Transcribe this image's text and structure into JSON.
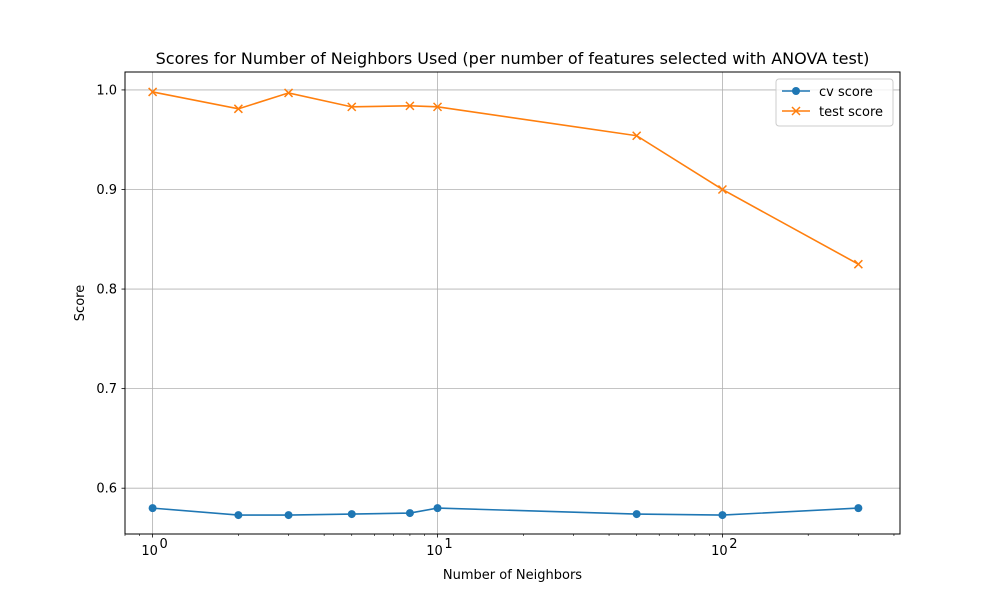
{
  "chart_data": {
    "type": "line",
    "title": "Scores for Number of Neighbors Used (per number of features selected with ANOVA test)",
    "xlabel": "Number of Neighbors",
    "ylabel": "Score",
    "x_scale": "log",
    "xlim": [
      0.8,
      420
    ],
    "ylim": [
      0.554,
      1.018
    ],
    "x": [
      1,
      2,
      3,
      5,
      8,
      10,
      50,
      100,
      300
    ],
    "x_ticks": [
      {
        "value": 1,
        "base": "10",
        "exp": "0"
      },
      {
        "value": 10,
        "base": "10",
        "exp": "1"
      },
      {
        "value": 100,
        "base": "10",
        "exp": "2"
      }
    ],
    "y_ticks": [
      {
        "value": 0.6,
        "label": "0.6"
      },
      {
        "value": 0.7,
        "label": "0.7"
      },
      {
        "value": 0.8,
        "label": "0.8"
      },
      {
        "value": 0.9,
        "label": "0.9"
      },
      {
        "value": 1.0,
        "label": "1.0"
      }
    ],
    "grid": true,
    "legend_position": "top-right",
    "series": [
      {
        "name": "cv score",
        "color": "#1f77b4",
        "marker": "circle",
        "values": [
          0.58,
          0.573,
          0.573,
          0.574,
          0.575,
          0.58,
          0.574,
          0.573,
          0.58
        ]
      },
      {
        "name": "test score",
        "color": "#ff7f0e",
        "marker": "x",
        "values": [
          0.998,
          0.981,
          0.997,
          0.983,
          0.984,
          0.983,
          0.954,
          0.9,
          0.825
        ]
      }
    ]
  }
}
